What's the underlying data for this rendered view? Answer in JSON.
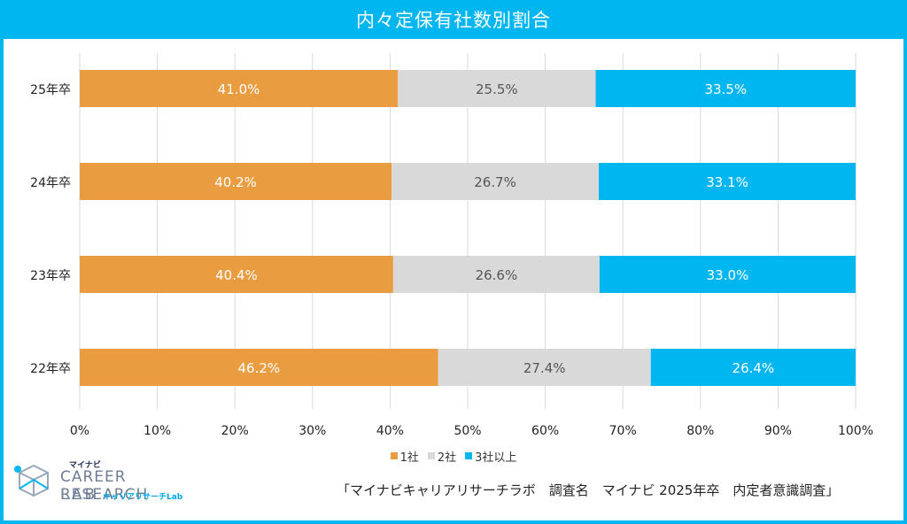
{
  "header": {
    "title": "内々定保有社数別割合"
  },
  "chart_data": {
    "type": "bar",
    "orientation": "horizontal",
    "stacked": true,
    "title": "内々定保有社数別割合",
    "categories": [
      "25年卒",
      "24年卒",
      "23年卒",
      "22年卒"
    ],
    "series": [
      {
        "name": "1社",
        "color": "#ea9c40",
        "label_color": "#ffffff",
        "values": [
          41.0,
          40.2,
          40.4,
          46.2
        ],
        "labels": [
          "41.0%",
          "40.2%",
          "40.4%",
          "46.2%"
        ]
      },
      {
        "name": "2社",
        "color": "#d9d9d9",
        "label_color": "#555555",
        "values": [
          25.5,
          26.7,
          26.6,
          27.4
        ],
        "labels": [
          "25.5%",
          "26.7%",
          "26.6%",
          "27.4%"
        ]
      },
      {
        "name": "3社以上",
        "color": "#00b6f0",
        "label_color": "#ffffff",
        "values": [
          33.5,
          33.1,
          33.0,
          26.4
        ],
        "labels": [
          "33.5%",
          "33.1%",
          "33.0%",
          "26.4%"
        ]
      }
    ],
    "xlim": [
      0,
      100
    ],
    "xticks": [
      0,
      10,
      20,
      30,
      40,
      50,
      60,
      70,
      80,
      90,
      100
    ],
    "xtick_labels": [
      "0%",
      "10%",
      "20%",
      "30%",
      "40%",
      "50%",
      "60%",
      "70%",
      "80%",
      "90%",
      "100%"
    ],
    "grid": "vertical",
    "legend_position": "bottom"
  },
  "legend": {
    "items": [
      {
        "label": "1社",
        "color": "#ea9c40"
      },
      {
        "label": "2社",
        "color": "#d9d9d9"
      },
      {
        "label": "3社以上",
        "color": "#00b6f0"
      }
    ]
  },
  "logo": {
    "brand_small": "マイナビ",
    "line1": "CAREER RESEARCH",
    "line2": "LAB",
    "sub": "キャリアリサーチLab",
    "icon": "cube-logo-icon"
  },
  "source": {
    "text": "「マイナビキャリアリサーチラボ　調査名　マイナビ 2025年卒　内定者意識調査」"
  },
  "colors": {
    "accent": "#00b6f0",
    "orange": "#ea9c40",
    "gray": "#d9d9d9"
  }
}
